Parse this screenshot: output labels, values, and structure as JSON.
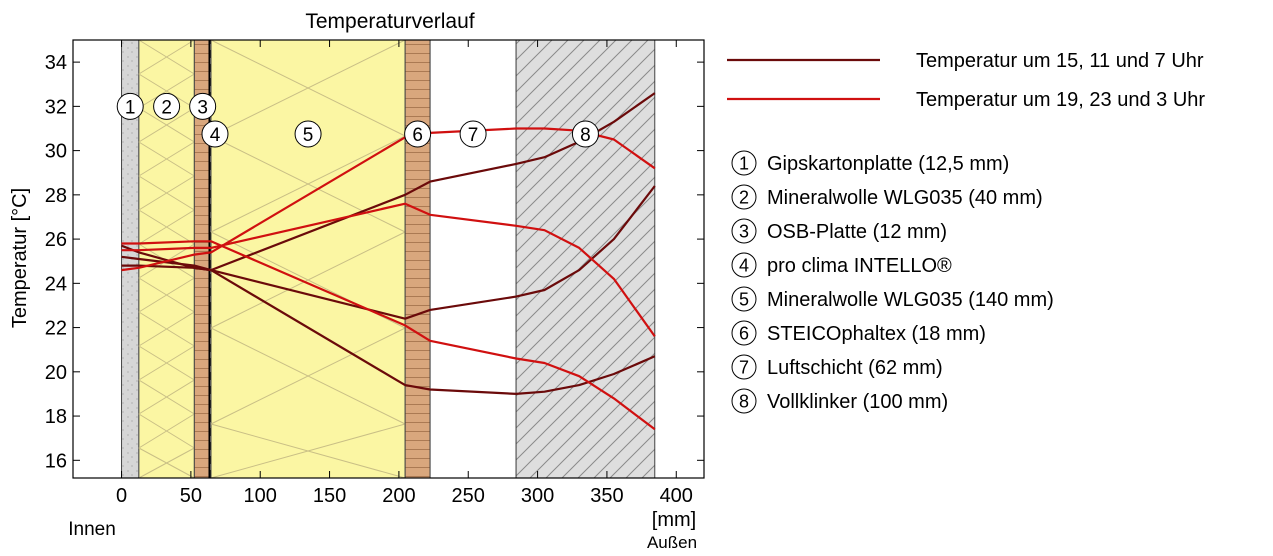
{
  "chart_data": {
    "type": "line",
    "title": "Temperaturverlauf",
    "xlabel": "[mm]",
    "ylabel": "Temperatur [°C]",
    "xlim": [
      -35,
      420
    ],
    "ylim": [
      15.2,
      35
    ],
    "x_ticks": [
      0,
      50,
      100,
      150,
      200,
      250,
      300,
      350,
      400
    ],
    "y_ticks": [
      16,
      18,
      20,
      22,
      24,
      26,
      28,
      30,
      32,
      34
    ],
    "x_left_caption": "Innen",
    "x_right_caption": "Außen",
    "grid": false,
    "legend_position": "right",
    "layers": [
      {
        "id": "1",
        "name": "Gipskartonplatte (12,5 mm)",
        "from": 0,
        "to": 12.5,
        "material": "gypsum"
      },
      {
        "id": "2",
        "name": "Mineralwolle WLG035 (40 mm)",
        "from": 12.5,
        "to": 52.5,
        "material": "mineral-wool"
      },
      {
        "id": "3",
        "name": "OSB-Platte (12 mm)",
        "from": 52.5,
        "to": 64.5,
        "material": "wood"
      },
      {
        "id": "4",
        "name": "pro clima INTELLO®",
        "from": 64.5,
        "to": 64.5,
        "material": "membrane"
      },
      {
        "id": "5",
        "name": "Mineralwolle WLG035 (140 mm)",
        "from": 64.5,
        "to": 204.5,
        "material": "mineral-wool"
      },
      {
        "id": "6",
        "name": "STEICOphaltex (18 mm)",
        "from": 204.5,
        "to": 222.5,
        "material": "wood"
      },
      {
        "id": "7",
        "name": "Luftschicht (62 mm)",
        "from": 222.5,
        "to": 284.5,
        "material": "air"
      },
      {
        "id": "8",
        "name": "Vollklinker (100 mm)",
        "from": 284.5,
        "to": 384.5,
        "material": "brick"
      }
    ],
    "series": [
      {
        "name": "Temperatur um 15, 11 und 7 Uhr",
        "color": "#6b0a0a",
        "x": [
          0,
          12.5,
          52.5,
          64.5,
          204.5,
          222.5,
          284.5,
          305,
          330,
          355,
          384.5
        ],
        "y": [
          25.7,
          25.4,
          24.7,
          24.6,
          28.0,
          28.6,
          29.4,
          29.7,
          30.4,
          31.3,
          32.6
        ]
      },
      {
        "name": "Temperatur um 15, 11 und 7 Uhr",
        "color": "#6b0a0a",
        "x": [
          0,
          12.5,
          52.5,
          64.5,
          204.5,
          222.5,
          284.5,
          305,
          330,
          355,
          384.5
        ],
        "y": [
          24.8,
          24.8,
          24.7,
          24.6,
          22.4,
          22.8,
          23.4,
          23.7,
          24.6,
          26.0,
          28.4
        ]
      },
      {
        "name": "Temperatur um 15, 11 und 7 Uhr",
        "color": "#6b0a0a",
        "x": [
          0,
          12.5,
          52.5,
          64.5,
          204.5,
          222.5,
          284.5,
          305,
          330,
          355,
          384.5
        ],
        "y": [
          25.2,
          25.1,
          24.8,
          24.6,
          19.4,
          19.2,
          19.0,
          19.1,
          19.4,
          19.9,
          20.7
        ]
      },
      {
        "name": "Temperatur um 19, 23 und 3 Uhr",
        "color": "#d01010",
        "x": [
          0,
          12.5,
          52.5,
          64.5,
          204.5,
          222.5,
          284.5,
          305,
          330,
          355,
          384.5
        ],
        "y": [
          24.6,
          24.7,
          25.3,
          25.4,
          30.6,
          30.8,
          31.0,
          31.0,
          30.9,
          30.5,
          29.2
        ]
      },
      {
        "name": "Temperatur um 19, 23 und 3 Uhr",
        "color": "#d01010",
        "x": [
          0,
          12.5,
          52.5,
          64.5,
          204.5,
          222.5,
          284.5,
          305,
          330,
          355,
          384.5
        ],
        "y": [
          25.5,
          25.5,
          25.6,
          25.6,
          27.6,
          27.1,
          26.6,
          26.4,
          25.6,
          24.2,
          21.6
        ]
      },
      {
        "name": "Temperatur um 19, 23 und 3 Uhr",
        "color": "#d01010",
        "x": [
          0,
          12.5,
          52.5,
          64.5,
          204.5,
          222.5,
          284.5,
          305,
          330,
          355,
          384.5
        ],
        "y": [
          25.8,
          25.8,
          25.9,
          25.9,
          22.1,
          21.4,
          20.6,
          20.4,
          19.8,
          18.8,
          17.4
        ]
      }
    ],
    "legend_lines": [
      {
        "label": "Temperatur um 15, 11 und 7 Uhr",
        "color": "#6b0a0a"
      },
      {
        "label": "Temperatur um 19, 23 und 3 Uhr",
        "color": "#d01010"
      }
    ],
    "legend_layers": [
      {
        "id": "1",
        "label": "Gipskartonplatte (12,5 mm)"
      },
      {
        "id": "2",
        "label": "Mineralwolle WLG035 (40 mm)"
      },
      {
        "id": "3",
        "label": "OSB-Platte (12 mm)"
      },
      {
        "id": "4",
        "label": "pro clima INTELLO®"
      },
      {
        "id": "5",
        "label": "Mineralwolle WLG035 (140 mm)"
      },
      {
        "id": "6",
        "label": "STEICOphaltex (18 mm)"
      },
      {
        "id": "7",
        "label": "Luftschicht (62 mm)"
      },
      {
        "id": "8",
        "label": "Vollklinker (100 mm)"
      }
    ],
    "colors": {
      "gypsum": "#d6d6d6",
      "mineral_wool": "#fbf6a3",
      "wood": "#d9a77d",
      "membrane": "#000000",
      "air": "#ffffff",
      "brick": "#dedede"
    }
  }
}
